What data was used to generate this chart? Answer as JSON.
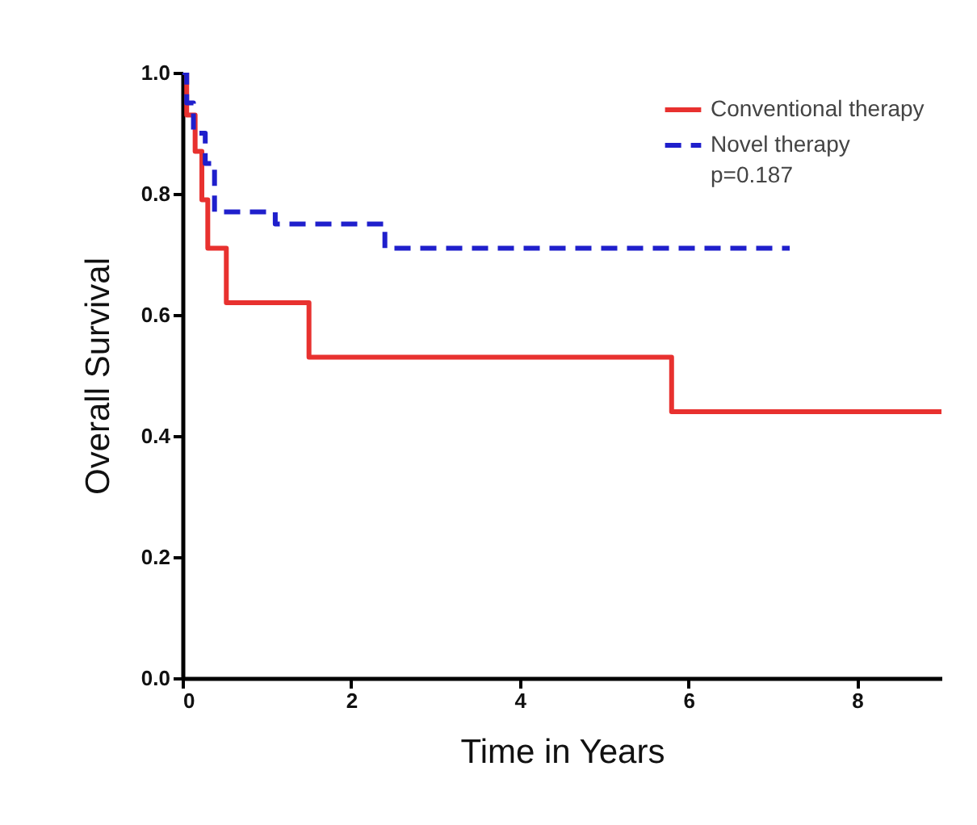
{
  "chart_data": {
    "type": "step",
    "xlabel": "Time in Years",
    "ylabel": "Overall Survival",
    "xlim": [
      0,
      9
    ],
    "xticks": [
      0,
      2,
      4,
      6,
      8
    ],
    "ylim": [
      0,
      1
    ],
    "yticks": [
      {
        "value": 0,
        "label": "0.0"
      },
      {
        "value": 0.2,
        "label": "0.2"
      },
      {
        "value": 0.4,
        "label": "0.4"
      },
      {
        "value": 0.6,
        "label": "0.6"
      },
      {
        "value": 0.8,
        "label": "0.8"
      },
      {
        "value": 1,
        "label": "1.0"
      }
    ],
    "grid": false,
    "legend": "top right",
    "annotations": [
      "p=0.187"
    ],
    "series": [
      {
        "name": "Conventional therapy",
        "color": "#e8312f",
        "line_style": "solid",
        "x": [
          0,
          0.05,
          0.15,
          0.23,
          0.3,
          0.52,
          1.5,
          5.8,
          9
        ],
        "values": [
          1,
          0.93,
          0.87,
          0.79,
          0.71,
          0.62,
          0.53,
          0.44,
          0.44
        ]
      },
      {
        "name": "Novel therapy",
        "color": "#1f1fcc",
        "line_style": "dashed",
        "x": [
          0,
          0.05,
          0.13,
          0.27,
          0.38,
          1.1,
          2.4,
          7.2
        ],
        "values": [
          1,
          0.95,
          0.9,
          0.85,
          0.77,
          0.75,
          0.71,
          0.71
        ]
      }
    ]
  }
}
